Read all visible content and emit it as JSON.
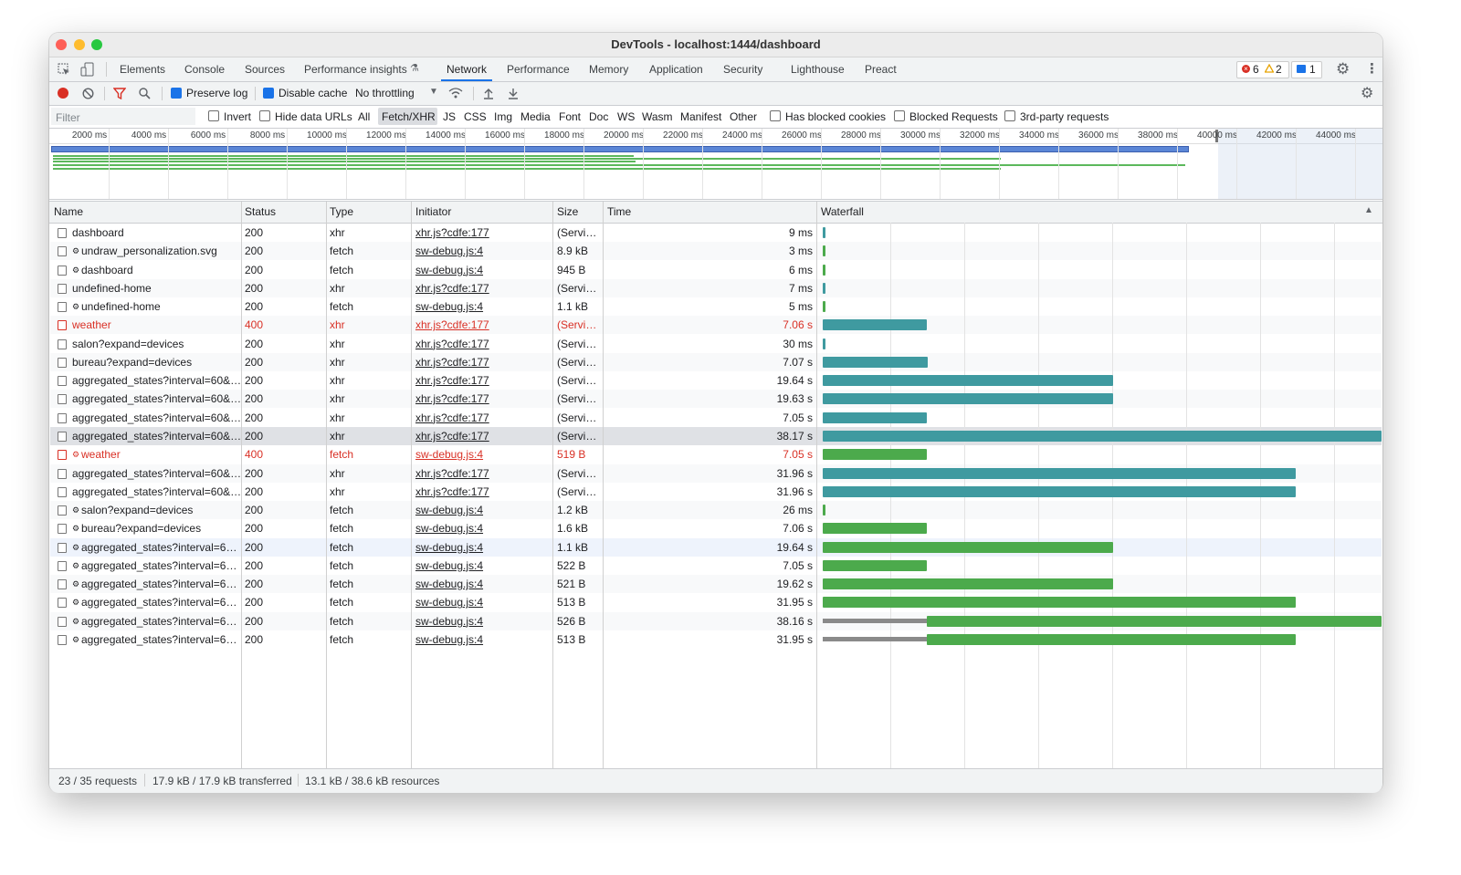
{
  "window": {
    "title": "DevTools - localhost:1444/dashboard"
  },
  "tabs": [
    "Elements",
    "Console",
    "Sources",
    "Performance insights",
    "Network",
    "Performance",
    "Memory",
    "Application",
    "Security",
    "Lighthouse",
    "Preact"
  ],
  "badges": {
    "errors": 6,
    "warnings": 2,
    "messages": 1
  },
  "toolbar": {
    "preserve_log": "Preserve log",
    "disable_cache": "Disable cache",
    "throttling": "No throttling"
  },
  "filter_bar": {
    "placeholder": "Filter",
    "invert": "Invert",
    "hide_data_urls": "Hide data URLs",
    "types": [
      "All",
      "Fetch/XHR",
      "JS",
      "CSS",
      "Img",
      "Media",
      "Font",
      "Doc",
      "WS",
      "Wasm",
      "Manifest",
      "Other"
    ],
    "has_blocked_cookies": "Has blocked cookies",
    "blocked_requests": "Blocked Requests",
    "third_party": "3rd-party requests"
  },
  "overview": {
    "ticks": [
      "2000 ms",
      "4000 ms",
      "6000 ms",
      "8000 ms",
      "10000 ms",
      "12000 ms",
      "14000 ms",
      "16000 ms",
      "18000 ms",
      "20000 ms",
      "22000 ms",
      "24000 ms",
      "26000 ms",
      "28000 ms",
      "30000 ms",
      "32000 ms",
      "34000 ms",
      "36000 ms",
      "38000 ms",
      "40000 ms",
      "42000 ms",
      "44000 ms"
    ]
  },
  "table": {
    "columns": [
      "Name",
      "Status",
      "Type",
      "Initiator",
      "Size",
      "Time",
      "Waterfall"
    ],
    "rows": [
      [
        "dashboard",
        200,
        "xhr",
        "xhr.js?cdfe:177",
        "(Servi…",
        "9 ms"
      ],
      [
        "undraw_personalization.svg",
        200,
        "fetch",
        "sw-debug.js:4",
        "8.9 kB",
        "3 ms"
      ],
      [
        "dashboard",
        200,
        "fetch",
        "sw-debug.js:4",
        "945 B",
        "6 ms"
      ],
      [
        "undefined-home",
        200,
        "xhr",
        "xhr.js?cdfe:177",
        "(Servi…",
        "7 ms"
      ],
      [
        "undefined-home",
        200,
        "fetch",
        "sw-debug.js:4",
        "1.1 kB",
        "5 ms"
      ],
      [
        "weather",
        400,
        "xhr",
        "xhr.js?cdfe:177",
        "(Servi…",
        "7.06 s"
      ],
      [
        "salon?expand=devices",
        200,
        "xhr",
        "xhr.js?cdfe:177",
        "(Servi…",
        "30 ms"
      ],
      [
        "bureau?expand=devices",
        200,
        "xhr",
        "xhr.js?cdfe:177",
        "(Servi…",
        "7.07 s"
      ],
      [
        "aggregated_states?interval=60&…",
        200,
        "xhr",
        "xhr.js?cdfe:177",
        "(Servi…",
        "19.64 s"
      ],
      [
        "aggregated_states?interval=60&…",
        200,
        "xhr",
        "xhr.js?cdfe:177",
        "(Servi…",
        "19.63 s"
      ],
      [
        "aggregated_states?interval=60&…",
        200,
        "xhr",
        "xhr.js?cdfe:177",
        "(Servi…",
        "7.05 s"
      ],
      [
        "aggregated_states?interval=60&…",
        200,
        "xhr",
        "xhr.js?cdfe:177",
        "(Servi…",
        "38.17 s"
      ],
      [
        "weather",
        400,
        "fetch",
        "sw-debug.js:4",
        "519 B",
        "7.05 s"
      ],
      [
        "aggregated_states?interval=60&…",
        200,
        "xhr",
        "xhr.js?cdfe:177",
        "(Servi…",
        "31.96 s"
      ],
      [
        "aggregated_states?interval=60&…",
        200,
        "xhr",
        "xhr.js?cdfe:177",
        "(Servi…",
        "31.96 s"
      ],
      [
        "salon?expand=devices",
        200,
        "fetch",
        "sw-debug.js:4",
        "1.2 kB",
        "26 ms"
      ],
      [
        "bureau?expand=devices",
        200,
        "fetch",
        "sw-debug.js:4",
        "1.6 kB",
        "7.06 s"
      ],
      [
        "aggregated_states?interval=6…",
        200,
        "fetch",
        "sw-debug.js:4",
        "1.1 kB",
        "19.64 s"
      ],
      [
        "aggregated_states?interval=6…",
        200,
        "fetch",
        "sw-debug.js:4",
        "522 B",
        "7.05 s"
      ],
      [
        "aggregated_states?interval=6…",
        200,
        "fetch",
        "sw-debug.js:4",
        "521 B",
        "19.62 s"
      ],
      [
        "aggregated_states?interval=6…",
        200,
        "fetch",
        "sw-debug.js:4",
        "513 B",
        "31.95 s"
      ],
      [
        "aggregated_states?interval=6…",
        200,
        "fetch",
        "sw-debug.js:4",
        "526 B",
        "38.16 s"
      ],
      [
        "aggregated_states?interval=6…",
        200,
        "fetch",
        "sw-debug.js:4",
        "513 B",
        "31.95 s"
      ]
    ]
  },
  "footer": {
    "requests": "23 / 35 requests",
    "transferred": "17.9 kB / 17.9 kB transferred",
    "resources": "13.1 kB / 38.6 kB resources"
  }
}
